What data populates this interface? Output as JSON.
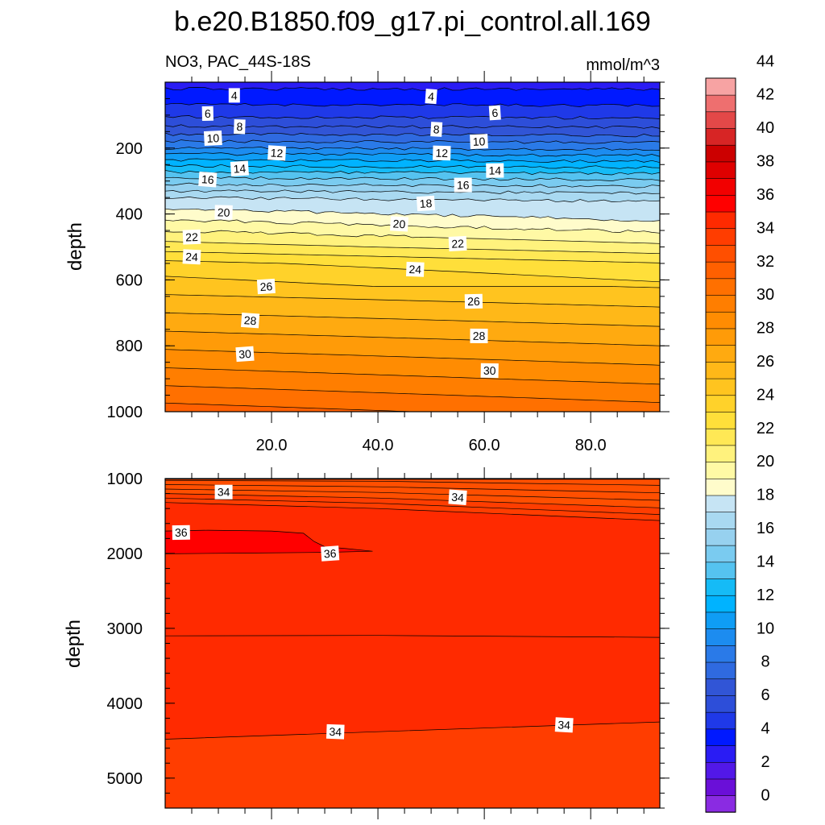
{
  "chart_data": {
    "type": "contour",
    "title": "b.e20.B1850.f09_g17.pi_control.all.169",
    "subtitle_left": "NO3, PAC_44S-18S",
    "units": "mmol/m^3",
    "colorbar": {
      "levels": [
        0,
        2,
        4,
        6,
        8,
        10,
        12,
        14,
        16,
        18,
        20,
        22,
        24,
        26,
        28,
        30,
        32,
        34,
        36,
        38,
        40,
        42,
        44
      ],
      "tick_labels": [
        "0",
        "2",
        "4",
        "6",
        "8",
        "10",
        "12",
        "14",
        "16",
        "18",
        "20",
        "22",
        "24",
        "26",
        "28",
        "30",
        "32",
        "34",
        "36",
        "38",
        "40",
        "42",
        "44"
      ],
      "colors": [
        "#8a2be2",
        "#6a0fd8",
        "#5218e8",
        "#2a1cf4",
        "#0019ff",
        "#1f39e8",
        "#2d4ed9",
        "#3155d6",
        "#2f6ae0",
        "#2a7ae8",
        "#1c8cf0",
        "#0f9df5",
        "#00b3ff",
        "#15bbf6",
        "#55c3f0",
        "#7acbf0",
        "#97d1ef",
        "#a9d9f1",
        "#c6e4f4",
        "#fffccb",
        "#fff9a5",
        "#fff27d",
        "#ffe855",
        "#ffdf3a",
        "#ffd22a",
        "#ffc41f",
        "#ffb818",
        "#ffaa10",
        "#ff9b08",
        "#ff8c02",
        "#ff7e00",
        "#ff7000",
        "#ff6000",
        "#ff4f00",
        "#ff3d00",
        "#ff2a00",
        "#ff0000",
        "#f20000",
        "#df0000",
        "#cc0000",
        "#d72525",
        "#e34848",
        "#ee6f6f",
        "#f7a3a3"
      ]
    },
    "panels": [
      {
        "name": "upper",
        "xlim": [
          0,
          93
        ],
        "ylim": [
          0,
          1000
        ],
        "y_inverted": true,
        "ylabel": "depth",
        "xticks": [
          20,
          40,
          60,
          80
        ],
        "xtick_labels": [
          "20.0",
          "40.0",
          "60.0",
          "80.0"
        ],
        "yticks": [
          200,
          400,
          600,
          800,
          1000
        ],
        "ytick_labels": [
          "200",
          "400",
          "600",
          "800",
          "1000"
        ],
        "contour_labels": [
          {
            "text": "4",
            "x": 13,
            "y": 40
          },
          {
            "text": "4",
            "x": 50,
            "y": 43
          },
          {
            "text": "6",
            "x": 8,
            "y": 95
          },
          {
            "text": "6",
            "x": 62,
            "y": 93
          },
          {
            "text": "8",
            "x": 14,
            "y": 135
          },
          {
            "text": "8",
            "x": 51,
            "y": 143
          },
          {
            "text": "10",
            "x": 9,
            "y": 170
          },
          {
            "text": "10",
            "x": 59,
            "y": 180
          },
          {
            "text": "12",
            "x": 21,
            "y": 215
          },
          {
            "text": "12",
            "x": 52,
            "y": 215
          },
          {
            "text": "14",
            "x": 14,
            "y": 262
          },
          {
            "text": "14",
            "x": 62,
            "y": 268
          },
          {
            "text": "16",
            "x": 8,
            "y": 295
          },
          {
            "text": "16",
            "x": 56,
            "y": 312
          },
          {
            "text": "18",
            "x": 49,
            "y": 368
          },
          {
            "text": "20",
            "x": 11,
            "y": 395
          },
          {
            "text": "20",
            "x": 44,
            "y": 430
          },
          {
            "text": "22",
            "x": 5,
            "y": 470
          },
          {
            "text": "22",
            "x": 55,
            "y": 490
          },
          {
            "text": "24",
            "x": 5,
            "y": 530
          },
          {
            "text": "24",
            "x": 47,
            "y": 568
          },
          {
            "text": "26",
            "x": 19,
            "y": 620
          },
          {
            "text": "26",
            "x": 58,
            "y": 665
          },
          {
            "text": "28",
            "x": 16,
            "y": 723
          },
          {
            "text": "28",
            "x": 59,
            "y": 770
          },
          {
            "text": "30",
            "x": 15,
            "y": 825
          },
          {
            "text": "30",
            "x": 61,
            "y": 875
          }
        ]
      },
      {
        "name": "lower",
        "ylim": [
          1000,
          5400
        ],
        "y_inverted": true,
        "ylabel": "depth",
        "yticks": [
          1000,
          2000,
          3000,
          4000,
          5000
        ],
        "ytick_labels": [
          "1000",
          "2000",
          "3000",
          "4000",
          "5000"
        ],
        "contour_labels": [
          {
            "text": "34",
            "x": 11,
            "y": 1180
          },
          {
            "text": "34",
            "x": 55,
            "y": 1250
          },
          {
            "text": "36",
            "x": 3,
            "y": 1720
          },
          {
            "text": "36",
            "x": 31,
            "y": 2000
          },
          {
            "text": "34",
            "x": 32,
            "y": 4380
          },
          {
            "text": "34",
            "x": 75,
            "y": 4290
          }
        ]
      }
    ]
  }
}
